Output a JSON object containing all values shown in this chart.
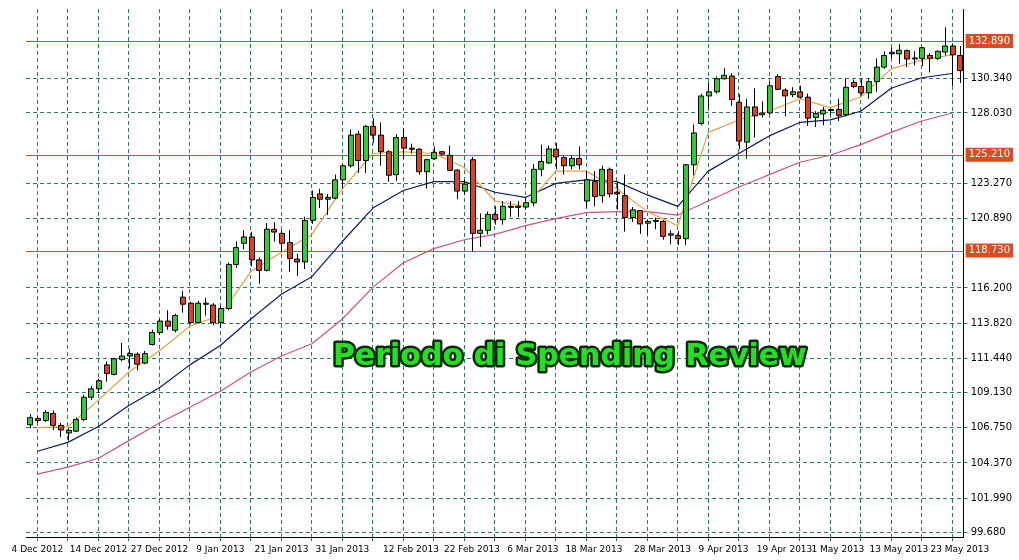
{
  "chart_data": {
    "type": "candlestick",
    "categories": [
      null,
      "4 Dec 2012",
      null,
      null,
      null,
      null,
      null,
      null,
      null,
      "14 Dec 2012",
      null,
      null,
      null,
      null,
      null,
      null,
      null,
      "27 Dec 2012",
      null,
      null,
      null,
      null,
      null,
      null,
      null,
      "9 Jan 2013",
      null,
      null,
      null,
      null,
      null,
      null,
      null,
      "21 Jan 2013",
      null,
      null,
      null,
      null,
      null,
      null,
      null,
      "31 Jan 2013",
      null,
      null,
      null,
      null,
      null,
      null,
      null,
      null,
      "12 Feb 2013",
      null,
      null,
      null,
      null,
      null,
      null,
      null,
      "22 Feb 2013",
      null,
      null,
      null,
      null,
      null,
      null,
      null,
      "6 Mar 2013",
      null,
      null,
      null,
      null,
      null,
      null,
      null,
      "18 Mar 2013",
      null,
      null,
      null,
      null,
      null,
      null,
      null,
      null,
      "28 Mar 2013",
      null,
      null,
      null,
      null,
      null,
      null,
      null,
      "9 Apr 2013",
      null,
      null,
      null,
      null,
      null,
      null,
      null,
      "19 Apr 2013",
      null,
      null,
      null,
      null,
      null,
      null,
      "1 May 2013",
      null,
      null,
      null,
      null,
      null,
      null,
      null,
      "13 May 2013",
      null,
      null,
      null,
      null,
      null,
      null,
      null,
      "23 May 2013"
    ],
    "ohlc": [
      [
        106.95,
        107.67,
        106.71,
        107.43
      ],
      [
        107.38,
        107.55,
        107.07,
        107.24
      ],
      [
        107.24,
        107.95,
        107.14,
        107.79
      ],
      [
        107.71,
        107.91,
        106.6,
        106.91
      ],
      [
        106.91,
        107.07,
        106.12,
        106.6
      ],
      [
        106.4,
        106.71,
        105.88,
        106.57
      ],
      [
        106.52,
        107.43,
        106.48,
        107.31
      ],
      [
        107.31,
        108.98,
        107.19,
        108.81
      ],
      [
        108.81,
        109.57,
        108.62,
        109.38
      ],
      [
        109.38,
        110.05,
        109.1,
        109.93
      ],
      [
        111.0,
        111.24,
        109.86,
        110.41
      ],
      [
        110.36,
        111.48,
        110.29,
        111.41
      ],
      [
        111.36,
        112.48,
        111.24,
        111.6
      ],
      [
        111.6,
        112.07,
        110.76,
        111.76
      ],
      [
        111.72,
        111.84,
        110.64,
        111.05
      ],
      [
        111.12,
        111.95,
        111.05,
        111.76
      ],
      [
        112.38,
        113.38,
        112.31,
        113.19
      ],
      [
        113.19,
        114.1,
        113.03,
        113.96
      ],
      [
        113.96,
        114.69,
        113.38,
        113.62
      ],
      [
        113.34,
        114.46,
        113.19,
        114.34
      ],
      [
        115.58,
        116.0,
        114.53,
        115.1
      ],
      [
        115.17,
        115.29,
        113.74,
        113.86
      ],
      [
        113.86,
        115.34,
        113.81,
        115.17
      ],
      [
        115.17,
        115.53,
        114.34,
        115.1
      ],
      [
        115.05,
        115.17,
        113.67,
        113.86
      ],
      [
        113.86,
        115.0,
        113.5,
        114.81
      ],
      [
        114.81,
        117.91,
        114.69,
        117.79
      ],
      [
        117.79,
        119.34,
        117.55,
        118.93
      ],
      [
        119.22,
        120.1,
        118.81,
        119.65
      ],
      [
        119.65,
        120.01,
        117.67,
        118.1
      ],
      [
        118.1,
        118.27,
        116.48,
        117.39
      ],
      [
        117.39,
        120.58,
        117.31,
        120.17
      ],
      [
        120.17,
        120.65,
        119.34,
        119.98
      ],
      [
        119.89,
        120.1,
        118.62,
        119.22
      ],
      [
        119.27,
        120.1,
        117.31,
        118.2
      ],
      [
        118.15,
        118.5,
        117.0,
        117.96
      ],
      [
        117.96,
        121.01,
        117.48,
        120.77
      ],
      [
        120.77,
        122.79,
        120.53,
        122.32
      ],
      [
        122.56,
        122.91,
        121.6,
        122.2
      ],
      [
        122.2,
        122.56,
        121.13,
        122.32
      ],
      [
        122.27,
        123.86,
        122.2,
        123.51
      ],
      [
        123.51,
        124.58,
        122.91,
        124.46
      ],
      [
        124.46,
        126.91,
        124.34,
        126.53
      ],
      [
        126.6,
        126.84,
        123.98,
        124.82
      ],
      [
        124.82,
        127.2,
        123.98,
        127.13
      ],
      [
        127.13,
        127.68,
        126.01,
        126.53
      ],
      [
        126.53,
        127.39,
        124.46,
        125.41
      ],
      [
        125.41,
        125.53,
        123.39,
        123.82
      ],
      [
        123.86,
        126.6,
        123.44,
        126.37
      ],
      [
        126.37,
        126.96,
        124.94,
        125.65
      ],
      [
        125.65,
        125.96,
        125.29,
        125.58
      ],
      [
        125.58,
        125.65,
        123.86,
        124.06
      ],
      [
        124.06,
        124.94,
        122.91,
        124.87
      ],
      [
        124.94,
        125.77,
        124.87,
        125.37
      ],
      [
        125.41,
        125.46,
        125.17,
        125.25
      ],
      [
        125.17,
        125.82,
        124.1,
        124.15
      ],
      [
        124.17,
        124.22,
        122.2,
        122.75
      ],
      [
        122.75,
        123.51,
        122.48,
        123.22
      ],
      [
        124.87,
        125.06,
        118.67,
        119.89
      ],
      [
        119.89,
        121.24,
        118.98,
        120.1
      ],
      [
        120.1,
        121.36,
        119.82,
        121.17
      ],
      [
        121.17,
        121.72,
        120.48,
        120.82
      ],
      [
        120.82,
        122.08,
        120.48,
        121.72
      ],
      [
        121.72,
        122.08,
        121.01,
        121.65
      ],
      [
        121.65,
        122.08,
        121.01,
        121.72
      ],
      [
        121.67,
        122.32,
        121.48,
        121.96
      ],
      [
        121.96,
        124.58,
        121.72,
        124.22
      ],
      [
        124.22,
        125.89,
        123.75,
        124.75
      ],
      [
        124.65,
        125.82,
        124.58,
        125.6
      ],
      [
        125.58,
        126.01,
        124.22,
        125.06
      ],
      [
        125.01,
        125.17,
        123.86,
        124.46
      ],
      [
        124.46,
        125.17,
        124.22,
        124.96
      ],
      [
        124.96,
        125.77,
        124.22,
        124.53
      ],
      [
        122.08,
        124.1,
        121.6,
        123.51
      ],
      [
        123.39,
        124.1,
        121.72,
        122.39
      ],
      [
        122.44,
        124.46,
        121.96,
        124.22
      ],
      [
        124.22,
        124.34,
        122.32,
        122.56
      ],
      [
        122.67,
        123.39,
        121.48,
        122.56
      ],
      [
        122.44,
        123.86,
        120.01,
        120.96
      ],
      [
        120.96,
        121.67,
        120.65,
        121.48
      ],
      [
        121.43,
        121.48,
        119.86,
        120.53
      ],
      [
        120.58,
        120.82,
        119.77,
        120.7
      ],
      [
        120.7,
        120.96,
        120.17,
        120.77
      ],
      [
        120.7,
        120.77,
        119.46,
        119.69
      ],
      [
        119.77,
        120.1,
        119.15,
        119.86
      ],
      [
        119.74,
        120.05,
        119.1,
        119.53
      ],
      [
        119.53,
        124.58,
        119.1,
        124.53
      ],
      [
        124.53,
        127.25,
        123.82,
        126.68
      ],
      [
        127.32,
        129.34,
        127.2,
        129.18
      ],
      [
        129.18,
        130.06,
        128.34,
        129.46
      ],
      [
        129.46,
        130.49,
        129.34,
        130.34
      ],
      [
        130.34,
        131.06,
        130.3,
        130.58
      ],
      [
        130.53,
        130.72,
        128.51,
        128.94
      ],
      [
        128.75,
        129.3,
        125.58,
        126.13
      ],
      [
        126.06,
        128.99,
        124.94,
        128.44
      ],
      [
        128.44,
        129.7,
        126.37,
        127.84
      ],
      [
        127.91,
        128.82,
        127.72,
        128.03
      ],
      [
        128.03,
        130.18,
        127.96,
        129.87
      ],
      [
        130.49,
        130.65,
        129.58,
        129.63
      ],
      [
        129.58,
        129.7,
        127.8,
        129.18
      ],
      [
        129.27,
        129.77,
        129.1,
        129.46
      ],
      [
        129.46,
        129.87,
        128.99,
        129.1
      ],
      [
        129.1,
        129.34,
        127.15,
        127.68
      ],
      [
        127.72,
        128.15,
        127.08,
        127.99
      ],
      [
        127.96,
        128.44,
        127.2,
        128.22
      ],
      [
        128.22,
        128.32,
        127.87,
        128.27
      ],
      [
        128.27,
        128.99,
        127.49,
        127.87
      ],
      [
        127.91,
        130.34,
        127.8,
        129.77
      ],
      [
        130.1,
        130.3,
        129.7,
        129.82
      ],
      [
        129.82,
        130.34,
        129.22,
        129.39
      ],
      [
        129.39,
        130.34,
        128.99,
        130.15
      ],
      [
        130.15,
        131.72,
        129.46,
        131.13
      ],
      [
        131.13,
        132.2,
        131.01,
        131.92
      ],
      [
        132.03,
        132.44,
        131.72,
        132.13
      ],
      [
        132.03,
        132.68,
        131.37,
        132.27
      ],
      [
        132.25,
        132.32,
        131.13,
        131.68
      ],
      [
        131.7,
        132.2,
        131.25,
        131.75
      ],
      [
        131.72,
        132.49,
        131.2,
        132.44
      ],
      [
        131.92,
        132.08,
        130.77,
        131.72
      ],
      [
        131.72,
        132.25,
        131.61,
        132.2
      ],
      [
        132.15,
        133.82,
        131.92,
        132.56
      ],
      [
        132.56,
        132.73,
        129.87,
        131.96
      ],
      [
        131.92,
        132.56,
        130.06,
        130.89
      ]
    ],
    "colors": [
      "#32cd32",
      "#e0401c",
      "#32cd32",
      "#e0401c",
      "#e0401c",
      "#32cd32",
      "#32cd32",
      "#32cd32",
      "#32cd32",
      "#32cd32",
      "#e0401c",
      "#32cd32",
      "#32cd32",
      "#32cd32",
      "#e0401c",
      "#32cd32",
      "#32cd32",
      "#32cd32",
      "#e0401c",
      "#32cd32",
      "#e0401c",
      "#e0401c",
      "#32cd32",
      "#e0401c",
      "#e0401c",
      "#32cd32",
      "#32cd32",
      "#32cd32",
      "#32cd32",
      "#e0401c",
      "#e0401c",
      "#32cd32",
      "#e0401c",
      "#e0401c",
      "#e0401c",
      "#e0401c",
      "#32cd32",
      "#32cd32",
      "#e0401c",
      "#32cd32",
      "#32cd32",
      "#32cd32",
      "#32cd32",
      "#e0401c",
      "#32cd32",
      "#e0401c",
      "#e0401c",
      "#e0401c",
      "#32cd32",
      "#e0401c",
      "#e0401c",
      "#e0401c",
      "#32cd32",
      "#32cd32",
      "#e0401c",
      "#e0401c",
      "#e0401c",
      "#32cd32",
      "#e0401c",
      "#32cd32",
      "#32cd32",
      "#e0401c",
      "#32cd32",
      "#e0401c",
      "#32cd32",
      "#32cd32",
      "#32cd32",
      "#32cd32",
      "#32cd32",
      "#e0401c",
      "#e0401c",
      "#32cd32",
      "#e0401c",
      "#32cd32",
      "#e0401c",
      "#32cd32",
      "#e0401c",
      "#e0401c",
      "#e0401c",
      "#32cd32",
      "#e0401c",
      "#32cd32",
      "#32cd32",
      "#e0401c",
      "#32cd32",
      "#e0401c",
      "#32cd32",
      "#32cd32",
      "#32cd32",
      "#32cd32",
      "#32cd32",
      "#32cd32",
      "#e0401c",
      "#e0401c",
      "#32cd32",
      "#e0401c",
      "#32cd32",
      "#32cd32",
      "#e0401c",
      "#e0401c",
      "#32cd32",
      "#e0401c",
      "#e0401c",
      "#32cd32",
      "#32cd32",
      "#32cd32",
      "#e0401c",
      "#32cd32",
      "#e0401c",
      "#e0401c",
      "#32cd32",
      "#32cd32",
      "#32cd32",
      "#32cd32",
      "#32cd32",
      "#e0401c",
      "#32cd32",
      "#32cd32",
      "#e0401c",
      "#32cd32",
      "#32cd32",
      "#e0401c",
      "#e0401c"
    ],
    "series": [
      {
        "type": "line",
        "color": "#e8a040",
        "values": [
          null,
          106.76,
          null,
          null,
          null,
          106.83,
          null,
          null,
          null,
          108.62,
          null,
          null,
          null,
          110.52,
          null,
          null,
          null,
          111.95,
          null,
          null,
          null,
          113.62,
          null,
          null,
          null,
          114.34,
          null,
          null,
          null,
          117.31,
          null,
          null,
          null,
          118.62,
          null,
          null,
          null,
          119.82,
          null,
          null,
          null,
          122.91,
          null,
          null,
          null,
          125.29,
          null,
          null,
          null,
          125.41,
          null,
          null,
          null,
          125.29,
          null,
          null,
          null,
          124.34,
          null,
          null,
          null,
          122.08,
          null,
          null,
          null,
          121.72,
          null,
          null,
          null,
          124.1,
          null,
          null,
          null,
          124.1,
          null,
          null,
          null,
          122.91,
          null,
          null,
          null,
          121.36,
          null,
          null,
          null,
          120.41,
          null,
          null,
          null,
          126.72,
          null,
          null,
          null,
          127.56,
          null,
          null,
          null,
          128.15,
          null,
          null,
          null,
          128.99,
          null,
          null,
          null,
          128.39,
          null,
          null,
          null,
          129.11,
          null,
          null,
          null,
          131.01,
          null,
          null,
          null,
          131.61,
          null,
          null,
          null,
          131.96,
          null
        ]
      },
      {
        "type": "line",
        "color": "#0c1c5c",
        "values": [
          null,
          105.16,
          null,
          null,
          null,
          105.76,
          null,
          null,
          null,
          106.83,
          null,
          null,
          null,
          108.26,
          null,
          null,
          null,
          109.45,
          null,
          null,
          null,
          111.0,
          null,
          null,
          null,
          112.31,
          null,
          null,
          null,
          114.1,
          null,
          null,
          null,
          115.77,
          null,
          null,
          null,
          116.96,
          null,
          null,
          null,
          119.34,
          null,
          null,
          null,
          121.6,
          null,
          null,
          null,
          122.79,
          null,
          null,
          null,
          123.39,
          null,
          null,
          null,
          123.39,
          null,
          null,
          null,
          122.67,
          null,
          null,
          null,
          122.32,
          null,
          null,
          null,
          123.27,
          null,
          null,
          null,
          123.51,
          null,
          null,
          null,
          123.39,
          null,
          null,
          null,
          122.49,
          null,
          null,
          null,
          121.72,
          null,
          null,
          null,
          124.1,
          null,
          null,
          null,
          125.29,
          null,
          null,
          null,
          126.48,
          null,
          null,
          null,
          127.39,
          null,
          null,
          null,
          127.56,
          null,
          null,
          null,
          128.15,
          null,
          null,
          null,
          129.7,
          null,
          null,
          null,
          130.41,
          null,
          null,
          null,
          130.7,
          null
        ]
      },
      {
        "type": "line",
        "color": "#d0508a",
        "values": [
          null,
          103.62,
          null,
          null,
          null,
          104.09,
          null,
          null,
          null,
          104.69,
          null,
          null,
          null,
          105.88,
          null,
          null,
          null,
          107.07,
          null,
          null,
          null,
          108.14,
          null,
          null,
          null,
          109.22,
          null,
          null,
          null,
          110.52,
          null,
          null,
          null,
          111.6,
          null,
          null,
          null,
          112.43,
          null,
          null,
          null,
          114.1,
          null,
          null,
          null,
          116.24,
          null,
          null,
          null,
          117.91,
          null,
          null,
          null,
          118.86,
          null,
          null,
          null,
          119.46,
          null,
          null,
          null,
          119.82,
          null,
          null,
          null,
          120.41,
          null,
          null,
          null,
          120.89,
          null,
          null,
          null,
          121.29,
          null,
          null,
          null,
          121.36,
          null,
          null,
          null,
          121.36,
          null,
          null,
          null,
          121.13,
          null,
          null,
          null,
          122.08,
          null,
          null,
          null,
          123.03,
          null,
          null,
          null,
          123.86,
          null,
          null,
          null,
          124.7,
          null,
          null,
          null,
          125.17,
          null,
          null,
          null,
          125.89,
          null,
          null,
          null,
          126.72,
          null,
          null,
          null,
          127.49,
          null,
          null,
          null,
          128.03,
          null
        ]
      }
    ],
    "ylim": [
      99.35,
      135.06
    ],
    "yticks": [
      {
        "value": 99.68,
        "label": "99.680"
      },
      {
        "value": 101.99,
        "label": "101.990"
      },
      {
        "value": 104.37,
        "label": "104.370"
      },
      {
        "value": 106.75,
        "label": "106.750"
      },
      {
        "value": 109.13,
        "label": "109.130"
      },
      {
        "value": 111.44,
        "label": "111.440"
      },
      {
        "value": 113.82,
        "label": "113.820"
      },
      {
        "value": 116.2,
        "label": "116.200"
      },
      {
        "value": 120.89,
        "label": "120.890"
      },
      {
        "value": 123.27,
        "label": "123.270"
      },
      {
        "value": 128.03,
        "label": "128.030"
      },
      {
        "value": 130.34,
        "label": "130.340"
      }
    ],
    "ref_lines": [
      {
        "axis": "y",
        "value": 132.89,
        "label": "132.890",
        "color": "#e04a20"
      },
      {
        "axis": "y",
        "value": 125.21,
        "label": "125.210",
        "color": "#e04a20"
      },
      {
        "axis": "y",
        "value": 118.73,
        "label": "118.730",
        "color": "#e04a20"
      }
    ],
    "annotations": [
      "Periodo di Spending Review"
    ],
    "grid": true,
    "legend": false,
    "marker": "none",
    "line_style": "solid"
  }
}
